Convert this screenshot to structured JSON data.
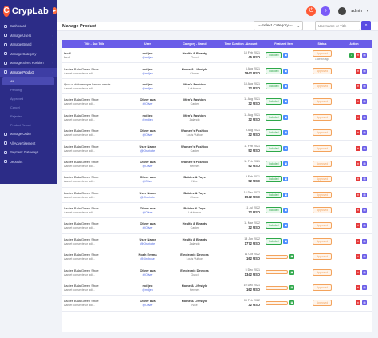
{
  "app": {
    "logo_text": "CrypLab",
    "admin_name": "admin"
  },
  "sidebar": {
    "items": [
      {
        "label": "Dashboard",
        "active": false
      },
      {
        "label": "Manage Users",
        "active": false
      },
      {
        "label": "Manage Brand",
        "active": false
      },
      {
        "label": "Manage Category",
        "active": false
      },
      {
        "label": "Manage Sizes Position",
        "active": false
      },
      {
        "label": "Manage Product",
        "active": true
      }
    ],
    "sub_items": [
      {
        "label": "All",
        "active": true,
        "count": ""
      },
      {
        "label": "Pending",
        "active": false,
        "count": ""
      },
      {
        "label": "Approved",
        "active": false,
        "count": ""
      },
      {
        "label": "Cancel",
        "active": false,
        "count": ""
      },
      {
        "label": "Rejected",
        "active": false,
        "count": ""
      },
      {
        "label": "Product Report",
        "active": false,
        "count": ""
      }
    ],
    "bottom_items": [
      {
        "label": "Manage Order"
      },
      {
        "label": "All Advertisement"
      },
      {
        "label": "Payment Gateways"
      },
      {
        "label": "Deposits"
      }
    ]
  },
  "header": {
    "title": "Manage Product",
    "filter_value": "---Select Category---",
    "search_placeholder": "Username or Title"
  },
  "table": {
    "columns": [
      "Title - Sub Title",
      "User",
      "Category - Brand",
      "Time Duration - Amount",
      "Featured Item",
      "Status",
      "Action"
    ],
    "rows": [
      {
        "title": "fasdf",
        "subtitle": "fasdf",
        "user_name": "md jeu",
        "user_handle": "@mdjeu",
        "category": "Health & Beauty",
        "brand": "Gucci",
        "date": "18 Feb 2021",
        "amount": "45 USD",
        "featured": "Included",
        "status": "Approved",
        "status_sub": "1 weeks ago",
        "actions": [
          "green",
          "red",
          "purple"
        ]
      },
      {
        "title": "Ladies Bala Green Shoe",
        "subtitle": "Aamet consectetur adi...",
        "user_name": "md jeu",
        "user_handle": "@mdjeu",
        "category": "Home & Lifestyle",
        "brand": "Chanel",
        "date": "6 Aug 2021",
        "amount": "1942 USD",
        "featured": "Included",
        "status": "Approved",
        "status_sub": "",
        "actions": [
          "red",
          "purple"
        ]
      },
      {
        "title": "Quo ut doloremque harum omnis...",
        "subtitle": "Aamet consectetur adi...",
        "user_name": "md jeu",
        "user_handle": "@mdjeu",
        "category": "Men's Fashion",
        "brand": "Lululemon",
        "date": "18 Aug 2021",
        "amount": "32 USD",
        "featured": "Included",
        "status": "Approved",
        "status_sub": "",
        "actions": [
          "red",
          "purple"
        ]
      },
      {
        "title": "Ladies Bala Green Shoe",
        "subtitle": "Aamet consectetur adi...",
        "user_name": "Oliver ava",
        "user_handle": "@Oliver",
        "category": "Men's Fashion",
        "brand": "Cartier",
        "date": "11 Aug 2021",
        "amount": "32 USD",
        "featured": "Included",
        "status": "Approved",
        "status_sub": "",
        "actions": [
          "red",
          "purple"
        ]
      },
      {
        "title": "Ladies Bala Green Shoe",
        "subtitle": "Aamet consectetur adi...",
        "user_name": "md jeu",
        "user_handle": "@mdjeu",
        "category": "Men's Fashion",
        "brand": "Zalando",
        "date": "11 Aug 2021",
        "amount": "32 USD",
        "featured": "Included",
        "status": "Approved",
        "status_sub": "",
        "actions": [
          "red",
          "purple"
        ]
      },
      {
        "title": "Ladies Bala Green Shoe",
        "subtitle": "Aamet consectetur adi...",
        "user_name": "Oliver ava",
        "user_handle": "@Oliver",
        "category": "Women's Fashion",
        "brand": "Louis Vuitton",
        "date": "9 Aug 2021",
        "amount": "32 USD",
        "featured": "Included",
        "status": "Approved",
        "status_sub": "",
        "actions": [
          "red",
          "purple"
        ]
      },
      {
        "title": "Ladies Bala Green Shoe",
        "subtitle": "Aamet consectetur adi...",
        "user_name": "User Name",
        "user_handle": "@Chariotte",
        "category": "Women's Fashion",
        "brand": "Cartier",
        "date": "11 Feb 2021",
        "amount": "52 USD",
        "featured": "Included",
        "status": "Approved",
        "status_sub": "",
        "actions": [
          "red",
          "purple"
        ]
      },
      {
        "title": "Ladies Bala Green Shoe",
        "subtitle": "Aamet consectetur adi...",
        "user_name": "Oliver ava",
        "user_handle": "@Oliver",
        "category": "Women's Fashion",
        "brand": "Hermes",
        "date": "11 Feb 2021",
        "amount": "52 USD",
        "featured": "Included",
        "status": "Approved",
        "status_sub": "",
        "actions": [
          "red",
          "purple"
        ]
      },
      {
        "title": "Ladies Bala Green Shoe",
        "subtitle": "Aamet consectetur adi...",
        "user_name": "Oliver ava",
        "user_handle": "@Oliver",
        "category": "Babies & Toys",
        "brand": "Nike",
        "date": "9 Feb 2021",
        "amount": "52 USD",
        "featured": "Included",
        "status": "Approved",
        "status_sub": "",
        "actions": [
          "red",
          "purple"
        ]
      },
      {
        "title": "Ladies Bala Green Shoe",
        "subtitle": "Aamet consectetur adi...",
        "user_name": "User Name",
        "user_handle": "@Chariotte",
        "category": "Babies & Toys",
        "brand": "Chanel",
        "date": "18 Dec 2022",
        "amount": "1942 USD",
        "featured": "Included",
        "status": "Approved",
        "status_sub": "",
        "actions": [
          "red",
          "purple"
        ]
      },
      {
        "title": "Ladies Bala Green Shoe",
        "subtitle": "Aamet consectetur adi...",
        "user_name": "Oliver ava",
        "user_handle": "@Oliver",
        "category": "Babies & Toys",
        "brand": "Lululemon",
        "date": "11 Jul 2022",
        "amount": "32 USD",
        "featured": "Included",
        "status": "Approved",
        "status_sub": "",
        "actions": [
          "red",
          "purple"
        ]
      },
      {
        "title": "Ladies Bala Green Shoe",
        "subtitle": "Aamet consectetur adi...",
        "user_name": "Oliver ava",
        "user_handle": "@Oliver",
        "category": "Health & Beauty",
        "brand": "Cartier",
        "date": "11 Mar 2022",
        "amount": "32 USD",
        "featured": "Included",
        "status": "Approved",
        "status_sub": "",
        "actions": [
          "red",
          "purple"
        ]
      },
      {
        "title": "Ladies Bala Green Shoe",
        "subtitle": "Aamet consectetur adi...",
        "user_name": "User Name",
        "user_handle": "@Chariotte",
        "category": "Health & Beauty",
        "brand": "Zalando",
        "date": "18 Jun 2022",
        "amount": "1772 USD",
        "featured": "Included",
        "status": "Approved",
        "status_sub": "",
        "actions": [
          "red",
          "purple"
        ]
      },
      {
        "title": "Ladies Bala Green Shoe",
        "subtitle": "Aamet consectetur adi...",
        "user_name": "Noah Emma",
        "user_handle": "@Kirdbcse",
        "category": "Electronic Devices",
        "brand": "Louis Vuitton",
        "date": "11 Oct 2022",
        "amount": "162 USD",
        "featured": "",
        "status": "Approved",
        "status_sub": "",
        "actions": [
          "red",
          "purple"
        ]
      },
      {
        "title": "Ladies Bala Green Shoe",
        "subtitle": "Aamet consectetur adi...",
        "user_name": "Oliver ava",
        "user_handle": "@Oliver",
        "category": "Electronic Devices",
        "brand": "Gucci",
        "date": "5 Dec 2021",
        "amount": "1342 USD",
        "featured": "",
        "status": "Approved",
        "status_sub": "",
        "actions": [
          "red",
          "purple"
        ]
      },
      {
        "title": "Ladies Bala Green Shoe",
        "subtitle": "Aamet consectetur adi...",
        "user_name": "md jeu",
        "user_handle": "@mdjeu",
        "category": "Home & Lifestyle",
        "brand": "Hermes",
        "date": "10 Dec 2021",
        "amount": "162 USD",
        "featured": "",
        "status": "Approved",
        "status_sub": "",
        "actions": [
          "red",
          "purple"
        ]
      },
      {
        "title": "Ladies Bala Green Shoe",
        "subtitle": "Aamet consectetur adi...",
        "user_name": "Oliver ava",
        "user_handle": "@Oliver",
        "category": "Home & Lifestyle",
        "brand": "Nike",
        "date": "08 Feb 2022",
        "amount": "32 USD",
        "featured": "",
        "status": "Approved",
        "status_sub": "",
        "actions": [
          "red",
          "purple"
        ]
      }
    ]
  },
  "colors": {
    "sidebar_bg": "#2c2c87",
    "accent": "#6a5de8",
    "success": "#2ea84a",
    "danger": "#e5393a",
    "warning": "#f3a35c"
  }
}
